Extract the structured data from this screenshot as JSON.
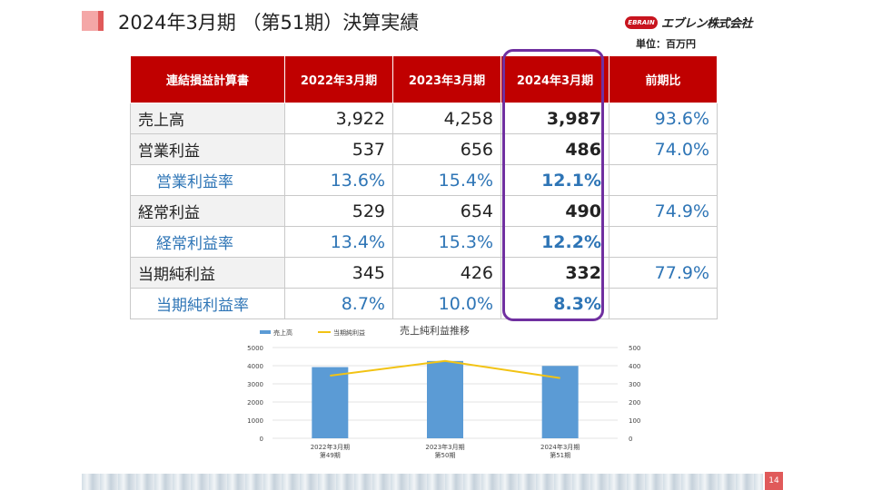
{
  "header": {
    "title": "2024年3月期 （第51期）決算実績",
    "logo_badge": "EBRAIN",
    "logo_name": "エブレン株式会社",
    "unit": "単位：百万円"
  },
  "table": {
    "headers": [
      "連結損益計算書",
      "2022年3月期",
      "2023年3月期",
      "2024年3月期",
      "前期比"
    ],
    "rows": [
      {
        "label": "売上高",
        "v2022": "3,922",
        "v2023": "4,258",
        "v2024": "3,987",
        "yoy": "93.6%"
      },
      {
        "label": "営業利益",
        "v2022": "537",
        "v2023": "656",
        "v2024": "486",
        "yoy": "74.0%"
      },
      {
        "label": "営業利益率",
        "v2022": "13.6%",
        "v2023": "15.4%",
        "v2024": "12.1%",
        "yoy": ""
      },
      {
        "label": "経常利益",
        "v2022": "529",
        "v2023": "654",
        "v2024": "490",
        "yoy": "74.9%"
      },
      {
        "label": "経常利益率",
        "v2022": "13.4%",
        "v2023": "15.3%",
        "v2024": "12.2%",
        "yoy": ""
      },
      {
        "label": "当期純利益",
        "v2022": "345",
        "v2023": "426",
        "v2024": "332",
        "yoy": "77.9%"
      },
      {
        "label": "当期純利益率",
        "v2022": "8.7%",
        "v2023": "10.0%",
        "v2024": "8.3%",
        "yoy": ""
      }
    ]
  },
  "chart_data": {
    "type": "bar",
    "title": "売上純利益推移",
    "categories": [
      [
        "2022年3月期",
        "第49期"
      ],
      [
        "2023年3月期",
        "第50期"
      ],
      [
        "2024年3月期",
        "第51期"
      ]
    ],
    "series": [
      {
        "name": "売上高",
        "type": "bar",
        "axis": "left",
        "values": [
          3922,
          4258,
          3987
        ],
        "color": "#5b9bd5"
      },
      {
        "name": "当期純利益",
        "type": "line",
        "axis": "right",
        "values": [
          345,
          426,
          332
        ],
        "color": "#f2c314"
      }
    ],
    "ylim_left": [
      0,
      5000
    ],
    "ylim_right": [
      0,
      500
    ],
    "yticks_left": [
      "0",
      "1000",
      "2000",
      "3000",
      "4000",
      "5000"
    ],
    "yticks_right": [
      "0",
      "100",
      "200",
      "300",
      "400",
      "500"
    ],
    "legend": "top-left",
    "grid": true
  },
  "footer": {
    "page_number": "14"
  }
}
